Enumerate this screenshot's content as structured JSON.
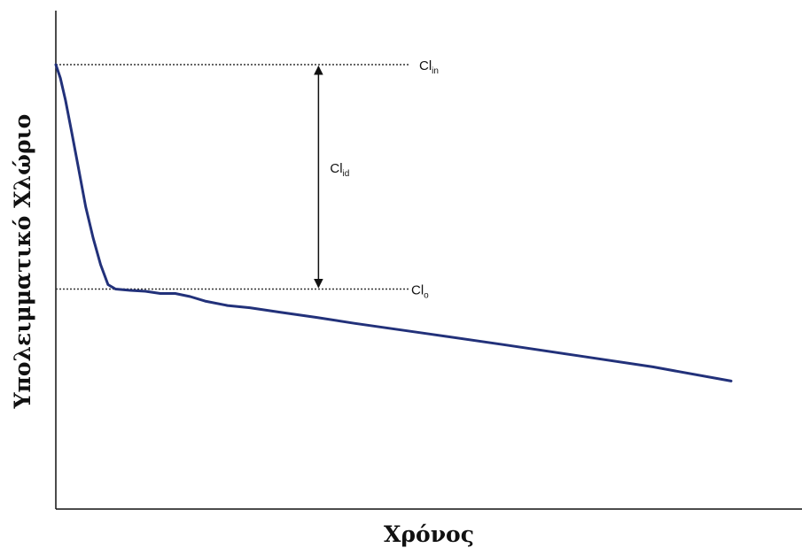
{
  "chart_data": {
    "type": "line",
    "xlabel": "Χρόνος",
    "ylabel": "Υπολειμματικό Χλώριο",
    "xlim": [
      0,
      100
    ],
    "ylim": [
      0,
      100
    ],
    "ticks": "none",
    "grid": false,
    "series": [
      {
        "color": "#22317a",
        "points": [
          [
            0,
            100
          ],
          [
            0.6,
            97
          ],
          [
            1.3,
            92
          ],
          [
            2.1,
            85
          ],
          [
            3.0,
            77
          ],
          [
            4.0,
            68
          ],
          [
            5.0,
            61
          ],
          [
            6.0,
            55
          ],
          [
            7.0,
            50.5
          ],
          [
            8.0,
            49.5
          ],
          [
            10.0,
            49.2
          ],
          [
            12.0,
            49.0
          ],
          [
            14.0,
            48.5
          ],
          [
            16.0,
            48.5
          ],
          [
            18.0,
            47.8
          ],
          [
            20.0,
            46.8
          ],
          [
            23.0,
            45.8
          ],
          [
            26.0,
            45.3
          ],
          [
            30.0,
            44.3
          ],
          [
            35.0,
            43.1
          ],
          [
            40.0,
            41.8
          ],
          [
            50.0,
            39.4
          ],
          [
            60.0,
            37.0
          ],
          [
            70.0,
            34.5
          ],
          [
            80.0,
            32.0
          ],
          [
            90.5,
            28.8
          ]
        ]
      }
    ],
    "annotations": {
      "cl_in": {
        "label": "Cl",
        "sub": "in",
        "y": 100
      },
      "cl_o": {
        "label": "Cl",
        "sub": "o",
        "y": 49.5
      },
      "cl_id": {
        "label": "Cl",
        "sub": "id",
        "x": 35.2,
        "from": 100,
        "to": 49.5
      }
    },
    "colors": {
      "line": "#22317a",
      "axis": "#111111",
      "guide": "#333333"
    }
  }
}
